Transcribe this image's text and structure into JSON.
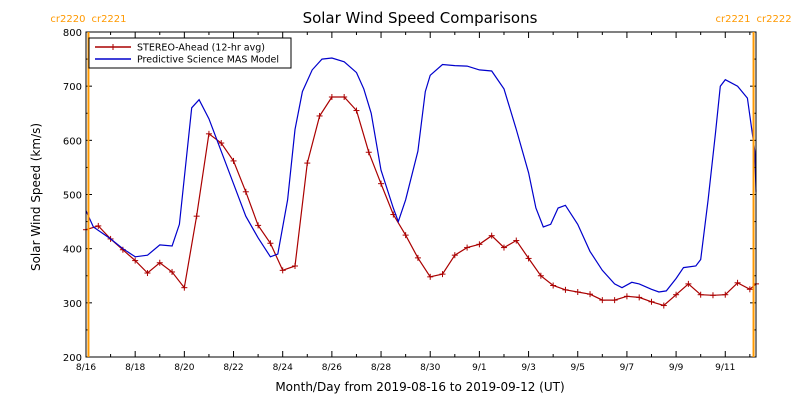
{
  "chart_data": {
    "type": "line",
    "title": "Solar Wind Speed Comparisons",
    "xlabel": "Month/Day from 2019-08-16 to 2019-09-12 (UT)",
    "ylabel": "Solar Wind Speed (km/s)",
    "xlim_days": [
      0,
      27.25
    ],
    "ylim": [
      200,
      800
    ],
    "yticks": [
      200,
      300,
      400,
      500,
      600,
      700,
      800
    ],
    "xticks": [
      {
        "day": 0,
        "label": "8/16"
      },
      {
        "day": 2,
        "label": "8/18"
      },
      {
        "day": 4,
        "label": "8/20"
      },
      {
        "day": 6,
        "label": "8/22"
      },
      {
        "day": 8,
        "label": "8/24"
      },
      {
        "day": 10,
        "label": "8/26"
      },
      {
        "day": 12,
        "label": "8/28"
      },
      {
        "day": 14,
        "label": "8/30"
      },
      {
        "day": 16,
        "label": "9/1"
      },
      {
        "day": 18,
        "label": "9/3"
      },
      {
        "day": 20,
        "label": "9/5"
      },
      {
        "day": 22,
        "label": "9/7"
      },
      {
        "day": 24,
        "label": "9/9"
      },
      {
        "day": 26,
        "label": "9/11"
      }
    ],
    "carrington_markers": [
      {
        "day": 0.1,
        "label_left": "cr2220",
        "label_right": "cr2221"
      },
      {
        "day": 27.15,
        "label_left": "cr2221",
        "label_right": "cr2222"
      }
    ],
    "legend_position": "top-left",
    "series": [
      {
        "name": "STEREO-Ahead (12-hr avg)",
        "color": "#aa0000",
        "markers": true,
        "points": [
          [
            0,
            435
          ],
          [
            0.5,
            442
          ],
          [
            1,
            418
          ],
          [
            1.5,
            398
          ],
          [
            2,
            378
          ],
          [
            2.5,
            355
          ],
          [
            3,
            374
          ],
          [
            3.5,
            357
          ],
          [
            4,
            328
          ],
          [
            4.5,
            460
          ],
          [
            5,
            612
          ],
          [
            5.5,
            595
          ],
          [
            6,
            562
          ],
          [
            6.5,
            505
          ],
          [
            7,
            443
          ],
          [
            7.5,
            410
          ],
          [
            8,
            360
          ],
          [
            8.5,
            368
          ],
          [
            9,
            558
          ],
          [
            9.5,
            645
          ],
          [
            10,
            680
          ],
          [
            10.5,
            680
          ],
          [
            11,
            655
          ],
          [
            11.5,
            578
          ],
          [
            12,
            520
          ],
          [
            12.5,
            463
          ],
          [
            13,
            425
          ],
          [
            13.5,
            383
          ],
          [
            14,
            348
          ],
          [
            14.5,
            353
          ],
          [
            15,
            388
          ],
          [
            15.5,
            402
          ],
          [
            16,
            408
          ],
          [
            16.5,
            424
          ],
          [
            17,
            402
          ],
          [
            17.5,
            415
          ],
          [
            18,
            382
          ],
          [
            18.5,
            350
          ],
          [
            19,
            332
          ],
          [
            19.5,
            324
          ],
          [
            20,
            320
          ],
          [
            20.5,
            316
          ],
          [
            21,
            305
          ],
          [
            21.5,
            305
          ],
          [
            22,
            312
          ],
          [
            22.5,
            310
          ],
          [
            23,
            302
          ],
          [
            23.5,
            295
          ],
          [
            24,
            315
          ],
          [
            24.5,
            335
          ],
          [
            25,
            315
          ],
          [
            25.5,
            314
          ],
          [
            26,
            315
          ],
          [
            26.5,
            337
          ],
          [
            27,
            325
          ],
          [
            27.25,
            335
          ]
        ]
      },
      {
        "name": "Predictive Science MAS Model",
        "color": "#0000cc",
        "markers": false,
        "points": [
          [
            0,
            470
          ],
          [
            0.3,
            440
          ],
          [
            1,
            418
          ],
          [
            1.5,
            400
          ],
          [
            2,
            385
          ],
          [
            2.5,
            388
          ],
          [
            3,
            407
          ],
          [
            3.5,
            405
          ],
          [
            3.8,
            445
          ],
          [
            4.3,
            660
          ],
          [
            4.6,
            675
          ],
          [
            5,
            640
          ],
          [
            5.5,
            580
          ],
          [
            6,
            520
          ],
          [
            6.5,
            460
          ],
          [
            7,
            420
          ],
          [
            7.5,
            385
          ],
          [
            7.8,
            390
          ],
          [
            8.2,
            490
          ],
          [
            8.5,
            620
          ],
          [
            8.8,
            690
          ],
          [
            9.2,
            730
          ],
          [
            9.6,
            750
          ],
          [
            10,
            752
          ],
          [
            10.5,
            745
          ],
          [
            11,
            725
          ],
          [
            11.3,
            695
          ],
          [
            11.6,
            650
          ],
          [
            12,
            545
          ],
          [
            12.5,
            475
          ],
          [
            12.7,
            450
          ],
          [
            13,
            490
          ],
          [
            13.5,
            580
          ],
          [
            13.8,
            690
          ],
          [
            14,
            720
          ],
          [
            14.5,
            740
          ],
          [
            15,
            738
          ],
          [
            15.5,
            737
          ],
          [
            16,
            730
          ],
          [
            16.5,
            728
          ],
          [
            17,
            695
          ],
          [
            17.5,
            620
          ],
          [
            18,
            540
          ],
          [
            18.3,
            475
          ],
          [
            18.6,
            440
          ],
          [
            18.9,
            445
          ],
          [
            19.2,
            475
          ],
          [
            19.5,
            480
          ],
          [
            20,
            445
          ],
          [
            20.5,
            395
          ],
          [
            21,
            360
          ],
          [
            21.5,
            335
          ],
          [
            21.8,
            328
          ],
          [
            22.2,
            338
          ],
          [
            22.5,
            335
          ],
          [
            23,
            325
          ],
          [
            23.3,
            320
          ],
          [
            23.6,
            322
          ],
          [
            24,
            345
          ],
          [
            24.3,
            365
          ],
          [
            24.8,
            368
          ],
          [
            25,
            380
          ],
          [
            25.3,
            490
          ],
          [
            25.6,
            612
          ],
          [
            25.8,
            700
          ],
          [
            26,
            712
          ],
          [
            26.5,
            700
          ],
          [
            26.9,
            678
          ],
          [
            27.2,
            580
          ],
          [
            27.25,
            505
          ]
        ]
      }
    ]
  }
}
